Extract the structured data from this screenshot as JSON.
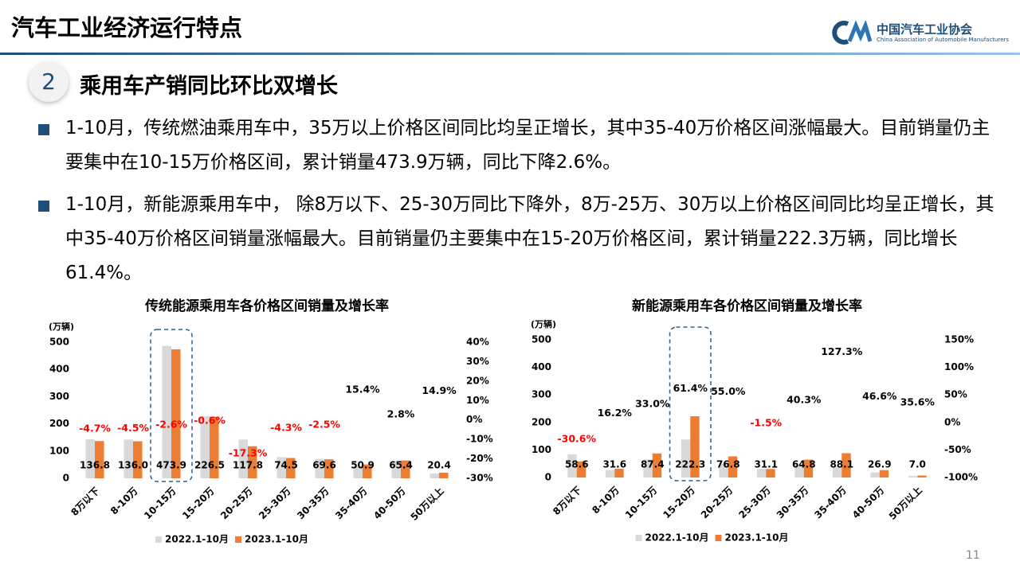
{
  "header": {
    "title": "汽车工业经济运行特点",
    "org_name": "中国汽车工业协会",
    "org_name_en": "China Association of Automobile Manufacturers"
  },
  "section": {
    "number": "2",
    "title": "乘用车产销同比环比双增长"
  },
  "bullets": [
    "1-10月，传统燃油乘用车中，35万以上价格区间同比均呈正增长，其中35-40万价格区间涨幅最大。目前销量仍主要集中在10-15万价格区间，累计销量473.9万辆，同比下降2.6%。",
    "1-10月，新能源乘用车中， 除8万以下、25-30万同比下降外，8万-25万、30万以上价格区间同比均呈正增长，其中35-40万价格区间销量涨幅最大。目前销量仍主要集中在15-20万价格区间，累计销量222.3万辆，同比增长61.4%。"
  ],
  "page_number": "11",
  "chart_data": [
    {
      "type": "bar",
      "title": "传统能源乘用车各价格区间销量及增长率",
      "y_label": "(万辆)",
      "categories": [
        "8万以下",
        "8-10万",
        "10-15万",
        "15-20万",
        "20-25万",
        "25-30万",
        "30-35万",
        "35-40万",
        "40-50万",
        "50万以上"
      ],
      "series": [
        {
          "name": "2022.1-10月",
          "color": "#d9d9d9",
          "values": [
            143.5,
            142.4,
            486.5,
            227.9,
            142.4,
            77.9,
            71.4,
            44.1,
            63.6,
            17.8
          ]
        },
        {
          "name": "2023.1-10月",
          "color": "#ed7d31",
          "values": [
            136.8,
            136.0,
            473.9,
            226.5,
            117.8,
            74.5,
            69.6,
            50.9,
            65.4,
            20.4
          ],
          "value_labels": [
            "136.8",
            "136.0",
            "473.9",
            "226.5",
            "117.8",
            "74.5",
            "69.6",
            "50.9",
            "65.4",
            "20.4"
          ]
        },
        {
          "axis": "y2",
          "color": "#000000",
          "negative_color": "#ff0000",
          "values": [
            -4.7,
            -4.5,
            -2.6,
            -0.6,
            -17.3,
            -4.3,
            -2.5,
            15.4,
            2.8,
            14.9
          ],
          "value_labels": [
            "-4.7%",
            "-4.5%",
            "-2.6%",
            "-0.6%",
            "-17.3%",
            "-4.3%",
            "-2.5%",
            "15.4%",
            "2.8%",
            "14.9%"
          ]
        }
      ],
      "ylim": [
        0,
        500
      ],
      "yticks": [
        0,
        100,
        200,
        300,
        400,
        500
      ],
      "y2lim": [
        -30,
        40
      ],
      "y2ticks": [
        {
          "value": -30,
          "label": "-30%"
        },
        {
          "value": -20,
          "label": "-20%"
        },
        {
          "value": -10,
          "label": "-10%"
        },
        {
          "value": 0,
          "label": "0%"
        },
        {
          "value": 10,
          "label": "10%"
        },
        {
          "value": 20,
          "label": "20%"
        },
        {
          "value": 30,
          "label": "30%"
        },
        {
          "value": 40,
          "label": "40%"
        }
      ],
      "highlight_index": 2
    },
    {
      "type": "bar",
      "title": "新能源乘用车各价格区间销量及增长率",
      "y_label": "(万辆)",
      "categories": [
        "8万以下",
        "8-10万",
        "10-15万",
        "15-20万",
        "20-25万",
        "25-30万",
        "30-35万",
        "35-40万",
        "40-50万",
        "50万以上"
      ],
      "series": [
        {
          "name": "2022.1-10月",
          "color": "#d9d9d9",
          "values": [
            84.4,
            27.2,
            65.7,
            137.7,
            49.5,
            31.6,
            46.2,
            38.7,
            18.3,
            5.2
          ]
        },
        {
          "name": "2023.1-10月",
          "color": "#ed7d31",
          "values": [
            58.6,
            31.6,
            87.4,
            222.3,
            76.8,
            31.1,
            64.8,
            88.1,
            26.9,
            7.0
          ],
          "value_labels": [
            "58.6",
            "31.6",
            "87.4",
            "222.3",
            "76.8",
            "31.1",
            "64.8",
            "88.1",
            "26.9",
            "7.0"
          ]
        },
        {
          "axis": "y2",
          "color": "#000000",
          "negative_color": "#ff0000",
          "values": [
            -30.6,
            16.2,
            33.0,
            61.4,
            55.0,
            -1.5,
            40.3,
            127.3,
            46.6,
            35.6
          ],
          "value_labels": [
            "-30.6%",
            "16.2%",
            "33.0%",
            "61.4%",
            "55.0%",
            "-1.5%",
            "40.3%",
            "127.3%",
            "46.6%",
            "35.6%"
          ]
        }
      ],
      "ylim": [
        0,
        500
      ],
      "yticks": [
        0,
        100,
        200,
        300,
        400,
        500
      ],
      "y2lim": [
        -100,
        150
      ],
      "y2ticks": [
        {
          "value": -100,
          "label": "-100%"
        },
        {
          "value": -50,
          "label": "-50%"
        },
        {
          "value": 0,
          "label": "0%"
        },
        {
          "value": 50,
          "label": "50%"
        },
        {
          "value": 100,
          "label": "100%"
        },
        {
          "value": 150,
          "label": "150%"
        }
      ],
      "highlight_index": 3
    }
  ]
}
